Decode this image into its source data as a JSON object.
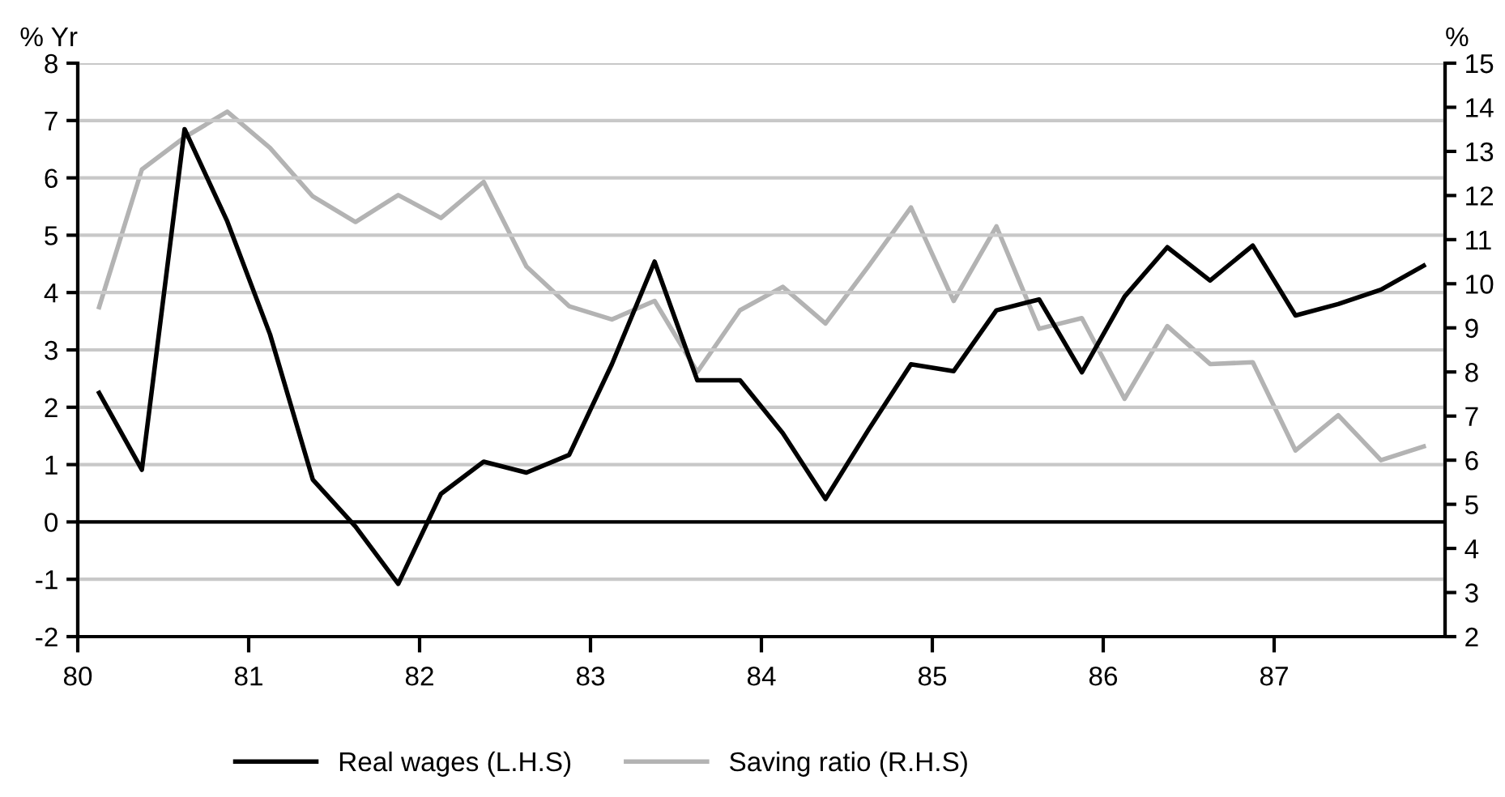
{
  "chart_data": {
    "type": "line",
    "ylabel": "% Yr",
    "y2label": "%",
    "x": [
      80.125,
      80.375,
      80.625,
      80.875,
      81.125,
      81.375,
      81.625,
      81.875,
      82.125,
      82.375,
      82.625,
      82.875,
      83.125,
      83.375,
      83.625,
      83.875,
      84.125,
      84.375,
      84.625,
      84.875,
      85.125,
      85.375,
      85.625,
      85.875,
      86.125,
      86.375,
      86.625,
      86.875,
      87.125,
      87.375,
      87.625,
      87.875
    ],
    "series": [
      {
        "name": "Real wages (L.H.S)",
        "color": "#000000",
        "values": [
          2.25,
          0.91,
          6.85,
          5.24,
          3.27,
          0.74,
          -0.08,
          -1.08,
          0.49,
          1.05,
          0.86,
          1.17,
          2.75,
          4.54,
          2.47,
          2.47,
          1.55,
          0.4,
          1.6,
          2.75,
          2.63,
          3.69,
          3.88,
          2.61,
          3.93,
          4.79,
          4.21,
          4.82,
          3.6,
          3.8,
          4.05,
          4.47
        ]
      },
      {
        "name": "Saving ratio (R.H.S)",
        "color": "#b3b3b3",
        "axis": "y2",
        "values": [
          9.47,
          12.59,
          13.32,
          13.9,
          13.08,
          11.98,
          11.4,
          12.01,
          11.49,
          12.31,
          10.39,
          9.49,
          9.19,
          9.61,
          8.0,
          9.4,
          9.93,
          9.1,
          10.39,
          11.73,
          9.61,
          11.3,
          8.98,
          9.22,
          7.39,
          9.04,
          8.18,
          8.22,
          6.22,
          7.02,
          6.0,
          6.31
        ]
      }
    ],
    "xlim": [
      80,
      88
    ],
    "xticks": [
      80,
      81,
      82,
      83,
      84,
      85,
      86,
      87
    ],
    "ylim": [
      -2,
      8
    ],
    "yticks": [
      -2,
      -1,
      0,
      1,
      2,
      3,
      4,
      5,
      6,
      7,
      8
    ],
    "y2lim": [
      2,
      15
    ],
    "y2ticks": [
      2,
      3,
      4,
      5,
      6,
      7,
      8,
      9,
      10,
      11,
      12,
      13,
      14,
      15
    ],
    "ref_lines": [
      {
        "axis": "y",
        "value": 0,
        "color": "#000000"
      }
    ],
    "grid": "y",
    "legend": "bottom",
    "line_style": "solid",
    "marker": "none"
  }
}
